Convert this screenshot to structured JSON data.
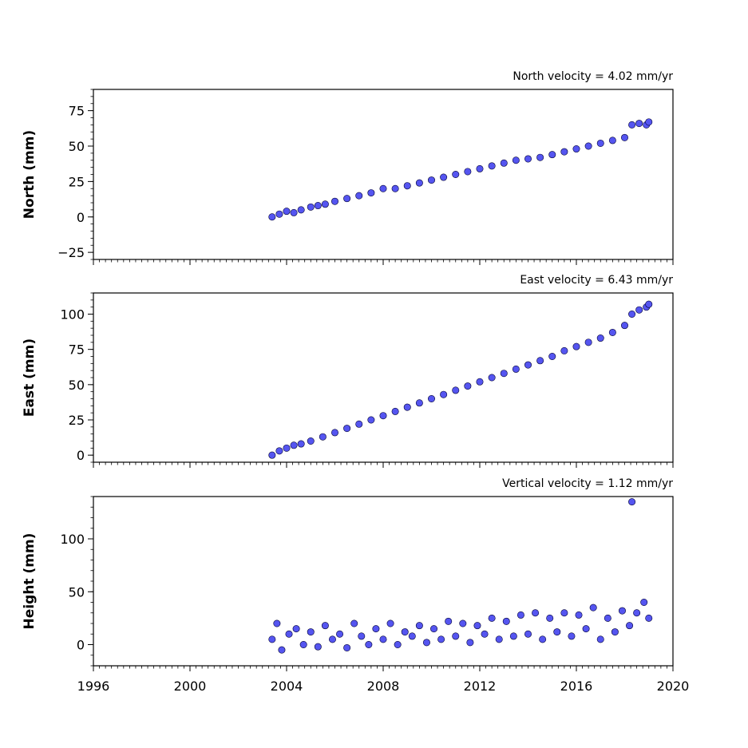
{
  "chart_data": [
    {
      "type": "scatter",
      "ylabel": "North (mm)",
      "annotation": "North velocity = 4.02 mm/yr",
      "xlim": [
        1996,
        2020
      ],
      "ylim": [
        -30,
        90
      ],
      "yticks": [
        -25,
        0,
        25,
        50,
        75
      ],
      "ytick_labels": [
        "−25",
        "0",
        "25",
        "50",
        "75"
      ],
      "x_tick_labels_shown": false,
      "series": [
        {
          "x": [
            2003.4,
            2003.7,
            2004.0,
            2004.3,
            2004.6,
            2005.0,
            2005.3,
            2005.6,
            2006.0,
            2006.5,
            2007.0,
            2007.5,
            2008.0,
            2008.5,
            2009.0,
            2009.5,
            2010.0,
            2010.5,
            2011.0,
            2011.5,
            2012.0,
            2012.5,
            2013.0,
            2013.5,
            2014.0,
            2014.5,
            2015.0,
            2015.5,
            2016.0,
            2016.5,
            2017.0,
            2017.5,
            2018.0,
            2018.3,
            2018.6,
            2018.9,
            2019.0
          ],
          "y": [
            0,
            2,
            4,
            3,
            5,
            7,
            8,
            9,
            11,
            13,
            15,
            17,
            20,
            20,
            22,
            24,
            26,
            28,
            30,
            32,
            34,
            36,
            38,
            40,
            41,
            42,
            44,
            46,
            48,
            50,
            52,
            54,
            56,
            65,
            66,
            65,
            67
          ]
        }
      ]
    },
    {
      "type": "scatter",
      "ylabel": "East (mm)",
      "annotation": "East velocity = 6.43 mm/yr",
      "xlim": [
        1996,
        2020
      ],
      "ylim": [
        -5,
        115
      ],
      "yticks": [
        0,
        25,
        50,
        75,
        100
      ],
      "ytick_labels": [
        "0",
        "25",
        "50",
        "75",
        "100"
      ],
      "x_tick_labels_shown": false,
      "series": [
        {
          "x": [
            2003.4,
            2003.7,
            2004.0,
            2004.3,
            2004.6,
            2005.0,
            2005.5,
            2006.0,
            2006.5,
            2007.0,
            2007.5,
            2008.0,
            2008.5,
            2009.0,
            2009.5,
            2010.0,
            2010.5,
            2011.0,
            2011.5,
            2012.0,
            2012.5,
            2013.0,
            2013.5,
            2014.0,
            2014.5,
            2015.0,
            2015.5,
            2016.0,
            2016.5,
            2017.0,
            2017.5,
            2018.0,
            2018.3,
            2018.6,
            2018.9,
            2019.0
          ],
          "y": [
            0,
            3,
            5,
            7,
            8,
            10,
            13,
            16,
            19,
            22,
            25,
            28,
            31,
            34,
            37,
            40,
            43,
            46,
            49,
            52,
            55,
            58,
            61,
            64,
            67,
            70,
            74,
            77,
            80,
            83,
            87,
            92,
            100,
            103,
            105,
            107
          ]
        }
      ]
    },
    {
      "type": "scatter",
      "ylabel": "Height (mm)",
      "annotation": "Vertical velocity = 1.12 mm/yr",
      "xlim": [
        1996,
        2020
      ],
      "ylim": [
        -20,
        140
      ],
      "yticks": [
        0,
        50,
        100
      ],
      "ytick_labels": [
        "0",
        "50",
        "100"
      ],
      "xticks": [
        1996,
        2000,
        2004,
        2008,
        2012,
        2016,
        2020
      ],
      "xtick_labels": [
        "1996",
        "2000",
        "2004",
        "2008",
        "2012",
        "2016",
        "2020"
      ],
      "x_tick_labels_shown": true,
      "series": [
        {
          "x": [
            2003.4,
            2003.6,
            2003.8,
            2004.1,
            2004.4,
            2004.7,
            2005.0,
            2005.3,
            2005.6,
            2005.9,
            2006.2,
            2006.5,
            2006.8,
            2007.1,
            2007.4,
            2007.7,
            2008.0,
            2008.3,
            2008.6,
            2008.9,
            2009.2,
            2009.5,
            2009.8,
            2010.1,
            2010.4,
            2010.7,
            2011.0,
            2011.3,
            2011.6,
            2011.9,
            2012.2,
            2012.5,
            2012.8,
            2013.1,
            2013.4,
            2013.7,
            2014.0,
            2014.3,
            2014.6,
            2014.9,
            2015.2,
            2015.5,
            2015.8,
            2016.1,
            2016.4,
            2016.7,
            2017.0,
            2017.3,
            2017.6,
            2017.9,
            2018.2,
            2018.5,
            2018.8,
            2019.0,
            2018.3
          ],
          "y": [
            5,
            20,
            -5,
            10,
            15,
            0,
            12,
            -2,
            18,
            5,
            10,
            -3,
            20,
            8,
            0,
            15,
            5,
            20,
            0,
            12,
            8,
            18,
            2,
            15,
            5,
            22,
            8,
            20,
            2,
            18,
            10,
            25,
            5,
            22,
            8,
            28,
            10,
            30,
            5,
            25,
            12,
            30,
            8,
            28,
            15,
            35,
            5,
            25,
            12,
            32,
            18,
            30,
            40,
            25,
            135
          ]
        }
      ]
    }
  ]
}
